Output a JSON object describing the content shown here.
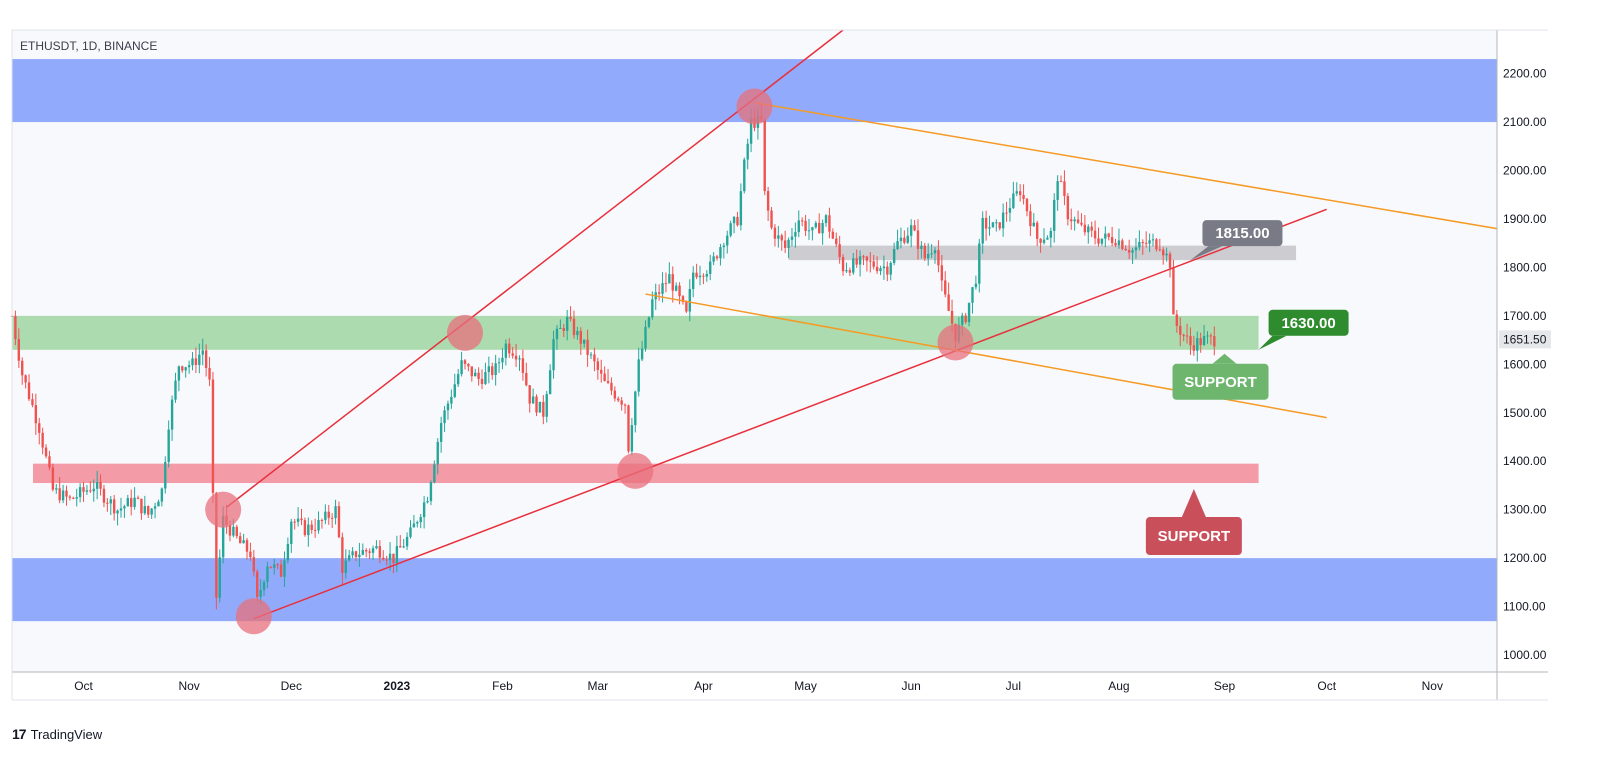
{
  "chart_data": {
    "type": "candlestick",
    "symbol": "ETHUSDT, 1D, BINANCE",
    "y_axis": {
      "ticks": [
        "2200.00",
        "2100.00",
        "2000.00",
        "1900.00",
        "1800.00",
        "1700.00",
        "1600.00",
        "1500.00",
        "1400.00",
        "1300.00",
        "1200.00",
        "1100.00",
        "1000.00"
      ],
      "range": [
        965,
        2290
      ]
    },
    "x_axis": {
      "ticks": [
        {
          "label": "Oct",
          "date": "2022-10-01",
          "bold": false
        },
        {
          "label": "Nov",
          "date": "2022-11-01",
          "bold": false
        },
        {
          "label": "Dec",
          "date": "2022-12-01",
          "bold": false
        },
        {
          "label": "2023",
          "date": "2023-01-01",
          "bold": true
        },
        {
          "label": "Feb",
          "date": "2023-02-01",
          "bold": false
        },
        {
          "label": "Mar",
          "date": "2023-03-01",
          "bold": false
        },
        {
          "label": "Apr",
          "date": "2023-04-01",
          "bold": false
        },
        {
          "label": "May",
          "date": "2023-05-01",
          "bold": false
        },
        {
          "label": "Jun",
          "date": "2023-06-01",
          "bold": false
        },
        {
          "label": "Jul",
          "date": "2023-07-01",
          "bold": false
        },
        {
          "label": "Aug",
          "date": "2023-08-01",
          "bold": false
        },
        {
          "label": "Sep",
          "date": "2023-09-01",
          "bold": false
        },
        {
          "label": "Oct",
          "date": "2023-10-01",
          "bold": false
        },
        {
          "label": "Nov",
          "date": "2023-11-01",
          "bold": false
        }
      ],
      "range": [
        "2022-09-10",
        "2023-11-20"
      ]
    },
    "price_path": [
      [
        "2022-09-10",
        1700
      ],
      [
        "2022-09-13",
        1580
      ],
      [
        "2022-09-18",
        1470
      ],
      [
        "2022-09-22",
        1340
      ],
      [
        "2022-09-27",
        1320
      ],
      [
        "2022-10-04",
        1350
      ],
      [
        "2022-10-11",
        1300
      ],
      [
        "2022-10-16",
        1320
      ],
      [
        "2022-10-20",
        1290
      ],
      [
        "2022-10-24",
        1340
      ],
      [
        "2022-10-26",
        1480
      ],
      [
        "2022-10-29",
        1600
      ],
      [
        "2022-11-02",
        1600
      ],
      [
        "2022-11-05",
        1630
      ],
      [
        "2022-11-07",
        1560
      ],
      [
        "2022-11-08",
        1320
      ],
      [
        "2022-11-09",
        1120
      ],
      [
        "2022-11-11",
        1280
      ],
      [
        "2022-11-16",
        1230
      ],
      [
        "2022-11-19",
        1210
      ],
      [
        "2022-11-21",
        1110
      ],
      [
        "2022-11-24",
        1190
      ],
      [
        "2022-11-28",
        1170
      ],
      [
        "2022-12-01",
        1280
      ],
      [
        "2022-12-05",
        1260
      ],
      [
        "2022-12-09",
        1270
      ],
      [
        "2022-12-14",
        1300
      ],
      [
        "2022-12-16",
        1180
      ],
      [
        "2022-12-20",
        1210
      ],
      [
        "2022-12-26",
        1220
      ],
      [
        "2022-12-31",
        1200
      ],
      [
        "2023-01-05",
        1250
      ],
      [
        "2023-01-10",
        1330
      ],
      [
        "2023-01-14",
        1480
      ],
      [
        "2023-01-18",
        1560
      ],
      [
        "2023-01-20",
        1600
      ],
      [
        "2023-01-25",
        1570
      ],
      [
        "2023-01-30",
        1590
      ],
      [
        "2023-02-02",
        1640
      ],
      [
        "2023-02-06",
        1620
      ],
      [
        "2023-02-09",
        1530
      ],
      [
        "2023-02-13",
        1500
      ],
      [
        "2023-02-16",
        1650
      ],
      [
        "2023-02-20",
        1690
      ],
      [
        "2023-02-24",
        1650
      ],
      [
        "2023-02-28",
        1600
      ],
      [
        "2023-03-03",
        1560
      ],
      [
        "2023-03-09",
        1520
      ],
      [
        "2023-03-10",
        1430
      ],
      [
        "2023-03-13",
        1600
      ],
      [
        "2023-03-17",
        1730
      ],
      [
        "2023-03-22",
        1780
      ],
      [
        "2023-03-27",
        1700
      ],
      [
        "2023-03-29",
        1790
      ],
      [
        "2023-04-03",
        1800
      ],
      [
        "2023-04-07",
        1860
      ],
      [
        "2023-04-11",
        1900
      ],
      [
        "2023-04-13",
        2010
      ],
      [
        "2023-04-15",
        2100
      ],
      [
        "2023-04-18",
        2100
      ],
      [
        "2023-04-19",
        1950
      ],
      [
        "2023-04-21",
        1880
      ],
      [
        "2023-04-25",
        1840
      ],
      [
        "2023-04-29",
        1900
      ],
      [
        "2023-05-03",
        1870
      ],
      [
        "2023-05-07",
        1900
      ],
      [
        "2023-05-12",
        1800
      ],
      [
        "2023-05-18",
        1810
      ],
      [
        "2023-05-25",
        1800
      ],
      [
        "2023-05-28",
        1850
      ],
      [
        "2023-06-01",
        1880
      ],
      [
        "2023-06-05",
        1820
      ],
      [
        "2023-06-08",
        1850
      ],
      [
        "2023-06-10",
        1760
      ],
      [
        "2023-06-14",
        1660
      ],
      [
        "2023-06-17",
        1700
      ],
      [
        "2023-06-20",
        1780
      ],
      [
        "2023-06-22",
        1890
      ],
      [
        "2023-06-26",
        1880
      ],
      [
        "2023-06-30",
        1930
      ],
      [
        "2023-07-03",
        1960
      ],
      [
        "2023-07-08",
        1860
      ],
      [
        "2023-07-12",
        1870
      ],
      [
        "2023-07-14",
        1990
      ],
      [
        "2023-07-17",
        1910
      ],
      [
        "2023-07-21",
        1880
      ],
      [
        "2023-07-26",
        1860
      ],
      [
        "2023-07-31",
        1860
      ],
      [
        "2023-08-05",
        1835
      ],
      [
        "2023-08-09",
        1850
      ],
      [
        "2023-08-13",
        1850
      ],
      [
        "2023-08-16",
        1810
      ],
      [
        "2023-08-17",
        1690
      ],
      [
        "2023-08-19",
        1670
      ],
      [
        "2023-08-22",
        1640
      ],
      [
        "2023-08-26",
        1650
      ],
      [
        "2023-08-29",
        1651.5
      ]
    ],
    "current_price": "1651.50",
    "zones": [
      {
        "name": "upper-resistance-zone",
        "from": 2100,
        "to": 2230,
        "color": "#7f9cfb"
      },
      {
        "name": "lower-resistance-zone",
        "from": 1070,
        "to": 1200,
        "color": "#7f9cfb"
      },
      {
        "name": "green-support-zone",
        "from": 1630,
        "to": 1700,
        "color": "#9fd6a1"
      },
      {
        "name": "red-support-zone",
        "from": 1355,
        "to": 1395,
        "color": "#f28b96"
      },
      {
        "name": "gray-zone",
        "from": 1815,
        "to": 1845,
        "color": "#c7c7cc"
      }
    ],
    "trendlines": [
      {
        "name": "red-upper-trendline",
        "color": "#e8303c",
        "points": [
          [
            "2022-11-12",
            1305
          ],
          [
            "2023-05-12",
            2290
          ]
        ]
      },
      {
        "name": "red-lower-trendline",
        "color": "#e8303c",
        "points": [
          [
            "2022-11-20",
            1075
          ],
          [
            "2023-10-01",
            1920
          ]
        ]
      },
      {
        "name": "orange-upper-trendline",
        "color": "#f59a23",
        "points": [
          [
            "2023-04-16",
            2140
          ],
          [
            "2023-11-20",
            1880
          ]
        ]
      },
      {
        "name": "orange-lower-trendline",
        "color": "#f59a23",
        "points": [
          [
            "2023-03-15",
            1745
          ],
          [
            "2023-10-01",
            1490
          ]
        ]
      }
    ],
    "markers": [
      {
        "date": "2022-11-11",
        "price": 1300
      },
      {
        "date": "2022-11-20",
        "price": 1080
      },
      {
        "date": "2023-01-21",
        "price": 1665
      },
      {
        "date": "2023-03-12",
        "price": 1380
      },
      {
        "date": "2023-04-16",
        "price": 2132
      },
      {
        "date": "2023-06-14",
        "price": 1645
      }
    ],
    "callouts": [
      {
        "name": "callout-1815",
        "text": "1815.00",
        "bg": "#787b86",
        "anchor": [
          "2023-08-22",
          1815
        ]
      },
      {
        "name": "callout-1630",
        "text": "1630.00",
        "bg": "#2e8b2e",
        "anchor": [
          "2023-09-11",
          1630
        ]
      },
      {
        "name": "support-green",
        "text": "SUPPORT",
        "bg": "#6eb56e",
        "anchor": [
          "2023-09-01",
          1630
        ]
      },
      {
        "name": "support-red",
        "text": "SUPPORT",
        "bg": "#c9505a",
        "anchor": [
          "2023-08-23",
          1355
        ]
      }
    ]
  },
  "footer": {
    "brand": "TradingView",
    "logo": "17"
  }
}
